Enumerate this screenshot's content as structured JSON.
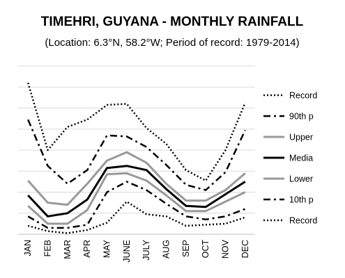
{
  "chart_data": {
    "type": "line",
    "title": "TIMEHRI, GUYANA - MONTHLY RAINFALL",
    "subtitle": "(Location: 6.3°N, 58.2°W; Period of record: 1979-2014)",
    "categories": [
      "JAN",
      "FEB",
      "MAR",
      "APR",
      "MAY",
      "JUNE",
      "JULY",
      "AUG",
      "SEP",
      "OCT",
      "NOV",
      "DEC"
    ],
    "ylim": [
      0,
      800
    ],
    "grid": true,
    "legend_position": "right",
    "series": [
      {
        "name": "Record",
        "style": "dotted",
        "color": "#000000",
        "values": [
          720,
          400,
          510,
          545,
          615,
          620,
          505,
          430,
          305,
          255,
          400,
          625
        ]
      },
      {
        "name": "90th p",
        "style": "dashdot",
        "color": "#000000",
        "values": [
          545,
          325,
          240,
          305,
          470,
          465,
          415,
          330,
          235,
          210,
          295,
          495
        ]
      },
      {
        "name": "Upper",
        "style": "solid",
        "color": "#999999",
        "values": [
          255,
          150,
          140,
          240,
          350,
          390,
          340,
          240,
          160,
          160,
          210,
          290
        ]
      },
      {
        "name": "Media",
        "style": "solid",
        "color": "#000000",
        "values": [
          185,
          85,
          100,
          165,
          315,
          325,
          305,
          215,
          135,
          130,
          190,
          250
        ]
      },
      {
        "name": "Lower",
        "style": "solid",
        "color": "#999999",
        "values": [
          135,
          50,
          50,
          115,
          285,
          290,
          255,
          185,
          110,
          110,
          155,
          200
        ]
      },
      {
        "name": "10th p",
        "style": "dashdot",
        "color": "#000000",
        "values": [
          85,
          30,
          30,
          45,
          200,
          250,
          210,
          145,
          85,
          70,
          85,
          120
        ]
      },
      {
        "name": "Record",
        "style": "dotted",
        "color": "#000000",
        "values": [
          40,
          15,
          5,
          20,
          55,
          155,
          95,
          85,
          40,
          45,
          50,
          80
        ]
      }
    ]
  }
}
